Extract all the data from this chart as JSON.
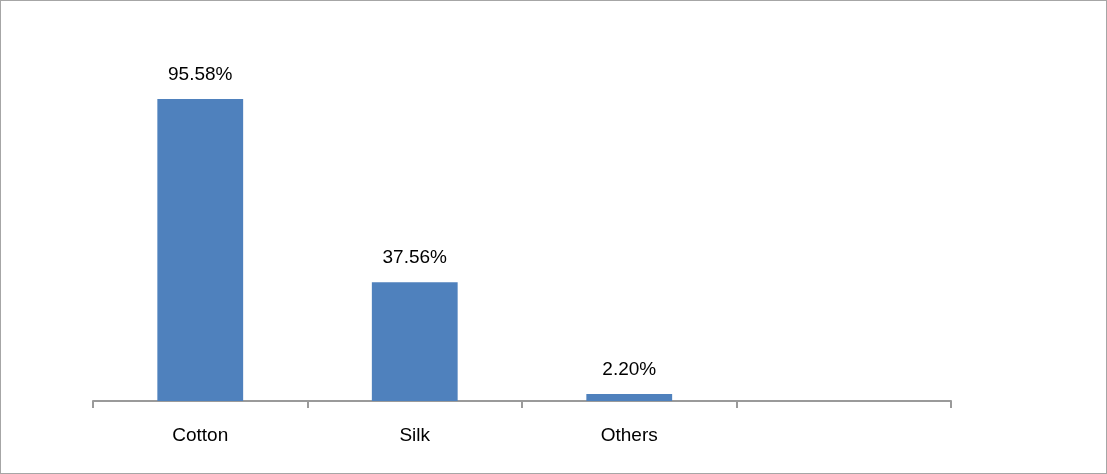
{
  "chart_data": {
    "type": "bar",
    "categories": [
      "Cotton",
      "Silk",
      "Others",
      null
    ],
    "values": [
      95.58,
      37.56,
      2.2,
      null
    ],
    "value_labels": [
      "95.58%",
      "37.56%",
      "2.20%",
      null
    ],
    "color": "#4f81bd"
  }
}
